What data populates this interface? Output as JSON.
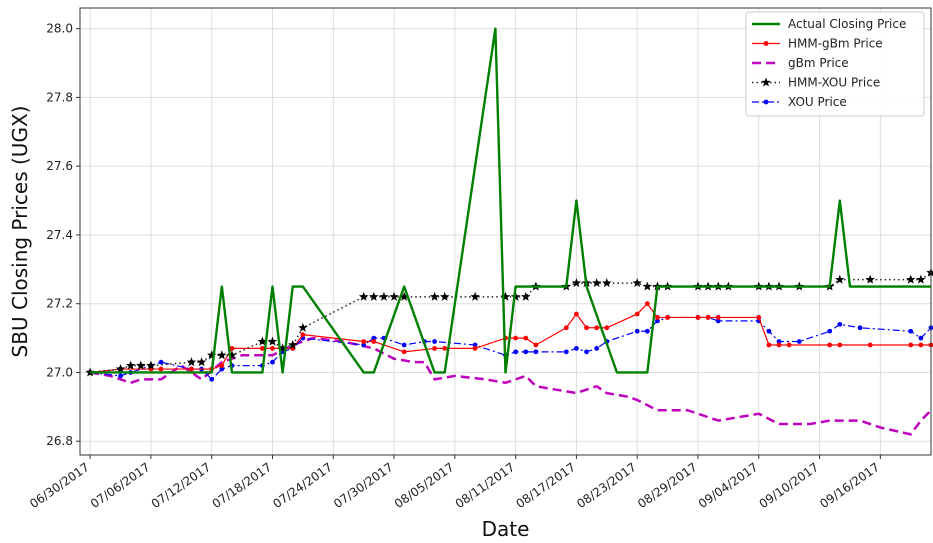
{
  "chart_data": {
    "type": "line",
    "title": "",
    "xlabel": "Date",
    "ylabel": "SBU Closing Prices (UGX)",
    "x_ticks": [
      "06/30/2017",
      "07/06/2017",
      "07/12/2017",
      "07/18/2017",
      "07/24/2017",
      "07/30/2017",
      "08/05/2017",
      "08/11/2017",
      "08/17/2017",
      "08/23/2017",
      "08/29/2017",
      "09/04/2017",
      "09/10/2017",
      "09/16/2017"
    ],
    "y_ticks": [
      "26.8",
      "27.0",
      "27.2",
      "27.4",
      "27.6",
      "27.8",
      "28.0"
    ],
    "xlim": [
      "2017-06-29",
      "2017-09-21"
    ],
    "ylim": [
      26.76,
      28.06
    ],
    "grid": true,
    "legend_position": "top-right",
    "series": [
      {
        "name": "Actual Closing Price",
        "color": "#008000",
        "style": "solid",
        "marker": "none",
        "points": [
          [
            "2017-06-30",
            27.0
          ],
          [
            "2017-07-03",
            27.0
          ],
          [
            "2017-07-04",
            27.0
          ],
          [
            "2017-07-05",
            27.0
          ],
          [
            "2017-07-06",
            27.0
          ],
          [
            "2017-07-07",
            27.0
          ],
          [
            "2017-07-10",
            27.0
          ],
          [
            "2017-07-11",
            27.0
          ],
          [
            "2017-07-12",
            27.0
          ],
          [
            "2017-07-13",
            27.25
          ],
          [
            "2017-07-14",
            27.0
          ],
          [
            "2017-07-17",
            27.0
          ],
          [
            "2017-07-18",
            27.25
          ],
          [
            "2017-07-19",
            27.0
          ],
          [
            "2017-07-20",
            27.25
          ],
          [
            "2017-07-21",
            27.25
          ],
          [
            "2017-07-27",
            27.0
          ],
          [
            "2017-07-28",
            27.0
          ],
          [
            "2017-07-31",
            27.25
          ],
          [
            "2017-08-03",
            27.0
          ],
          [
            "2017-08-04",
            27.0
          ],
          [
            "2017-08-09",
            28.0
          ],
          [
            "2017-08-10",
            27.0
          ],
          [
            "2017-08-11",
            27.25
          ],
          [
            "2017-08-14",
            27.25
          ],
          [
            "2017-08-15",
            27.25
          ],
          [
            "2017-08-16",
            27.25
          ],
          [
            "2017-08-17",
            27.5
          ],
          [
            "2017-08-18",
            27.25
          ],
          [
            "2017-08-21",
            27.0
          ],
          [
            "2017-08-22",
            27.0
          ],
          [
            "2017-08-23",
            27.0
          ],
          [
            "2017-08-24",
            27.0
          ],
          [
            "2017-08-25",
            27.25
          ],
          [
            "2017-09-07",
            27.25
          ],
          [
            "2017-09-08",
            27.25
          ],
          [
            "2017-09-11",
            27.25
          ],
          [
            "2017-09-12",
            27.5
          ],
          [
            "2017-09-13",
            27.25
          ],
          [
            "2017-09-21",
            27.25
          ]
        ]
      },
      {
        "name": "HMM-gBm Price",
        "color": "#ff0000",
        "style": "solid",
        "marker": "dot",
        "points": [
          [
            "2017-06-30",
            27.0
          ],
          [
            "2017-07-03",
            27.01
          ],
          [
            "2017-07-06",
            27.01
          ],
          [
            "2017-07-07",
            27.01
          ],
          [
            "2017-07-10",
            27.01
          ],
          [
            "2017-07-12",
            27.01
          ],
          [
            "2017-07-13",
            27.02
          ],
          [
            "2017-07-14",
            27.07
          ],
          [
            "2017-07-17",
            27.07
          ],
          [
            "2017-07-18",
            27.07
          ],
          [
            "2017-07-19",
            27.07
          ],
          [
            "2017-07-20",
            27.07
          ],
          [
            "2017-07-21",
            27.11
          ],
          [
            "2017-07-27",
            27.09
          ],
          [
            "2017-07-28",
            27.09
          ],
          [
            "2017-07-31",
            27.06
          ],
          [
            "2017-08-03",
            27.07
          ],
          [
            "2017-08-04",
            27.07
          ],
          [
            "2017-08-07",
            27.07
          ],
          [
            "2017-08-10",
            27.1
          ],
          [
            "2017-08-11",
            27.1
          ],
          [
            "2017-08-12",
            27.1
          ],
          [
            "2017-08-13",
            27.08
          ],
          [
            "2017-08-16",
            27.13
          ],
          [
            "2017-08-17",
            27.17
          ],
          [
            "2017-08-18",
            27.13
          ],
          [
            "2017-08-19",
            27.13
          ],
          [
            "2017-08-20",
            27.13
          ],
          [
            "2017-08-23",
            27.17
          ],
          [
            "2017-08-24",
            27.2
          ],
          [
            "2017-08-25",
            27.16
          ],
          [
            "2017-08-26",
            27.16
          ],
          [
            "2017-08-29",
            27.16
          ],
          [
            "2017-08-30",
            27.16
          ],
          [
            "2017-08-31",
            27.16
          ],
          [
            "2017-09-04",
            27.16
          ],
          [
            "2017-09-05",
            27.08
          ],
          [
            "2017-09-06",
            27.08
          ],
          [
            "2017-09-07",
            27.08
          ],
          [
            "2017-09-11",
            27.08
          ],
          [
            "2017-09-12",
            27.08
          ],
          [
            "2017-09-15",
            27.08
          ],
          [
            "2017-09-19",
            27.08
          ],
          [
            "2017-09-20",
            27.08
          ],
          [
            "2017-09-21",
            27.08
          ]
        ]
      },
      {
        "name": "gBm Price",
        "color": "#bf00bf",
        "style": "dashed",
        "marker": "none",
        "points": [
          [
            "2017-06-30",
            27.0
          ],
          [
            "2017-07-02",
            26.99
          ],
          [
            "2017-07-04",
            26.97
          ],
          [
            "2017-07-05",
            26.98
          ],
          [
            "2017-07-07",
            26.98
          ],
          [
            "2017-07-09",
            27.02
          ],
          [
            "2017-07-11",
            26.98
          ],
          [
            "2017-07-13",
            27.03
          ],
          [
            "2017-07-15",
            27.05
          ],
          [
            "2017-07-18",
            27.05
          ],
          [
            "2017-07-20",
            27.08
          ],
          [
            "2017-07-22",
            27.1
          ],
          [
            "2017-07-25",
            27.09
          ],
          [
            "2017-07-28",
            27.07
          ],
          [
            "2017-07-30",
            27.04
          ],
          [
            "2017-08-01",
            27.03
          ],
          [
            "2017-08-02",
            27.03
          ],
          [
            "2017-08-03",
            26.98
          ],
          [
            "2017-08-05",
            26.99
          ],
          [
            "2017-08-08",
            26.98
          ],
          [
            "2017-08-10",
            26.97
          ],
          [
            "2017-08-12",
            26.99
          ],
          [
            "2017-08-13",
            26.96
          ],
          [
            "2017-08-15",
            26.95
          ],
          [
            "2017-08-17",
            26.94
          ],
          [
            "2017-08-19",
            26.96
          ],
          [
            "2017-08-20",
            26.94
          ],
          [
            "2017-08-22",
            26.93
          ],
          [
            "2017-08-23",
            26.92
          ],
          [
            "2017-08-25",
            26.89
          ],
          [
            "2017-08-28",
            26.89
          ],
          [
            "2017-08-31",
            26.86
          ],
          [
            "2017-09-02",
            26.87
          ],
          [
            "2017-09-04",
            26.88
          ],
          [
            "2017-09-06",
            26.85
          ],
          [
            "2017-09-09",
            26.85
          ],
          [
            "2017-09-11",
            26.86
          ],
          [
            "2017-09-14",
            26.86
          ],
          [
            "2017-09-16",
            26.84
          ],
          [
            "2017-09-19",
            26.82
          ],
          [
            "2017-09-20",
            26.86
          ],
          [
            "2017-09-21",
            26.89
          ]
        ]
      },
      {
        "name": "HMM-XOU Price",
        "color": "#222222",
        "style": "dotted",
        "marker": "star",
        "points": [
          [
            "2017-06-30",
            27.0
          ],
          [
            "2017-07-03",
            27.01
          ],
          [
            "2017-07-04",
            27.02
          ],
          [
            "2017-07-05",
            27.02
          ],
          [
            "2017-07-06",
            27.02
          ],
          [
            "2017-07-10",
            27.03
          ],
          [
            "2017-07-11",
            27.03
          ],
          [
            "2017-07-12",
            27.05
          ],
          [
            "2017-07-13",
            27.05
          ],
          [
            "2017-07-14",
            27.05
          ],
          [
            "2017-07-17",
            27.09
          ],
          [
            "2017-07-18",
            27.09
          ],
          [
            "2017-07-19",
            27.07
          ],
          [
            "2017-07-20",
            27.08
          ],
          [
            "2017-07-21",
            27.13
          ],
          [
            "2017-07-27",
            27.22
          ],
          [
            "2017-07-28",
            27.22
          ],
          [
            "2017-07-29",
            27.22
          ],
          [
            "2017-07-30",
            27.22
          ],
          [
            "2017-07-31",
            27.22
          ],
          [
            "2017-08-03",
            27.22
          ],
          [
            "2017-08-04",
            27.22
          ],
          [
            "2017-08-07",
            27.22
          ],
          [
            "2017-08-10",
            27.22
          ],
          [
            "2017-08-11",
            27.22
          ],
          [
            "2017-08-12",
            27.22
          ],
          [
            "2017-08-13",
            27.25
          ],
          [
            "2017-08-16",
            27.25
          ],
          [
            "2017-08-17",
            27.26
          ],
          [
            "2017-08-18",
            27.26
          ],
          [
            "2017-08-19",
            27.26
          ],
          [
            "2017-08-20",
            27.26
          ],
          [
            "2017-08-23",
            27.26
          ],
          [
            "2017-08-24",
            27.25
          ],
          [
            "2017-08-25",
            27.25
          ],
          [
            "2017-08-26",
            27.25
          ],
          [
            "2017-08-29",
            27.25
          ],
          [
            "2017-08-30",
            27.25
          ],
          [
            "2017-08-31",
            27.25
          ],
          [
            "2017-09-01",
            27.25
          ],
          [
            "2017-09-04",
            27.25
          ],
          [
            "2017-09-05",
            27.25
          ],
          [
            "2017-09-06",
            27.25
          ],
          [
            "2017-09-08",
            27.25
          ],
          [
            "2017-09-11",
            27.25
          ],
          [
            "2017-09-12",
            27.27
          ],
          [
            "2017-09-15",
            27.27
          ],
          [
            "2017-09-19",
            27.27
          ],
          [
            "2017-09-20",
            27.27
          ],
          [
            "2017-09-21",
            27.29
          ]
        ]
      },
      {
        "name": "XOU Price",
        "color": "#0000ff",
        "style": "dashdot",
        "marker": "dot",
        "points": [
          [
            "2017-06-30",
            27.0
          ],
          [
            "2017-07-03",
            26.99
          ],
          [
            "2017-07-04",
            27.0
          ],
          [
            "2017-07-06",
            27.02
          ],
          [
            "2017-07-07",
            27.03
          ],
          [
            "2017-07-10",
            27.01
          ],
          [
            "2017-07-11",
            27.01
          ],
          [
            "2017-07-12",
            26.98
          ],
          [
            "2017-07-13",
            27.01
          ],
          [
            "2017-07-14",
            27.02
          ],
          [
            "2017-07-17",
            27.02
          ],
          [
            "2017-07-18",
            27.03
          ],
          [
            "2017-07-19",
            27.06
          ],
          [
            "2017-07-20",
            27.07
          ],
          [
            "2017-07-21",
            27.1
          ],
          [
            "2017-07-27",
            27.08
          ],
          [
            "2017-07-28",
            27.1
          ],
          [
            "2017-07-29",
            27.1
          ],
          [
            "2017-07-31",
            27.08
          ],
          [
            "2017-08-02",
            27.09
          ],
          [
            "2017-08-03",
            27.09
          ],
          [
            "2017-08-07",
            27.08
          ],
          [
            "2017-08-10",
            27.05
          ],
          [
            "2017-08-11",
            27.06
          ],
          [
            "2017-08-12",
            27.06
          ],
          [
            "2017-08-13",
            27.06
          ],
          [
            "2017-08-16",
            27.06
          ],
          [
            "2017-08-17",
            27.07
          ],
          [
            "2017-08-18",
            27.06
          ],
          [
            "2017-08-19",
            27.07
          ],
          [
            "2017-08-20",
            27.09
          ],
          [
            "2017-08-23",
            27.12
          ],
          [
            "2017-08-24",
            27.12
          ],
          [
            "2017-08-25",
            27.15
          ],
          [
            "2017-08-26",
            27.16
          ],
          [
            "2017-08-29",
            27.16
          ],
          [
            "2017-08-30",
            27.16
          ],
          [
            "2017-08-31",
            27.15
          ],
          [
            "2017-09-04",
            27.15
          ],
          [
            "2017-09-05",
            27.12
          ],
          [
            "2017-09-06",
            27.09
          ],
          [
            "2017-09-08",
            27.09
          ],
          [
            "2017-09-11",
            27.12
          ],
          [
            "2017-09-12",
            27.14
          ],
          [
            "2017-09-14",
            27.13
          ],
          [
            "2017-09-19",
            27.12
          ],
          [
            "2017-09-20",
            27.1
          ],
          [
            "2017-09-21",
            27.13
          ]
        ]
      }
    ]
  }
}
